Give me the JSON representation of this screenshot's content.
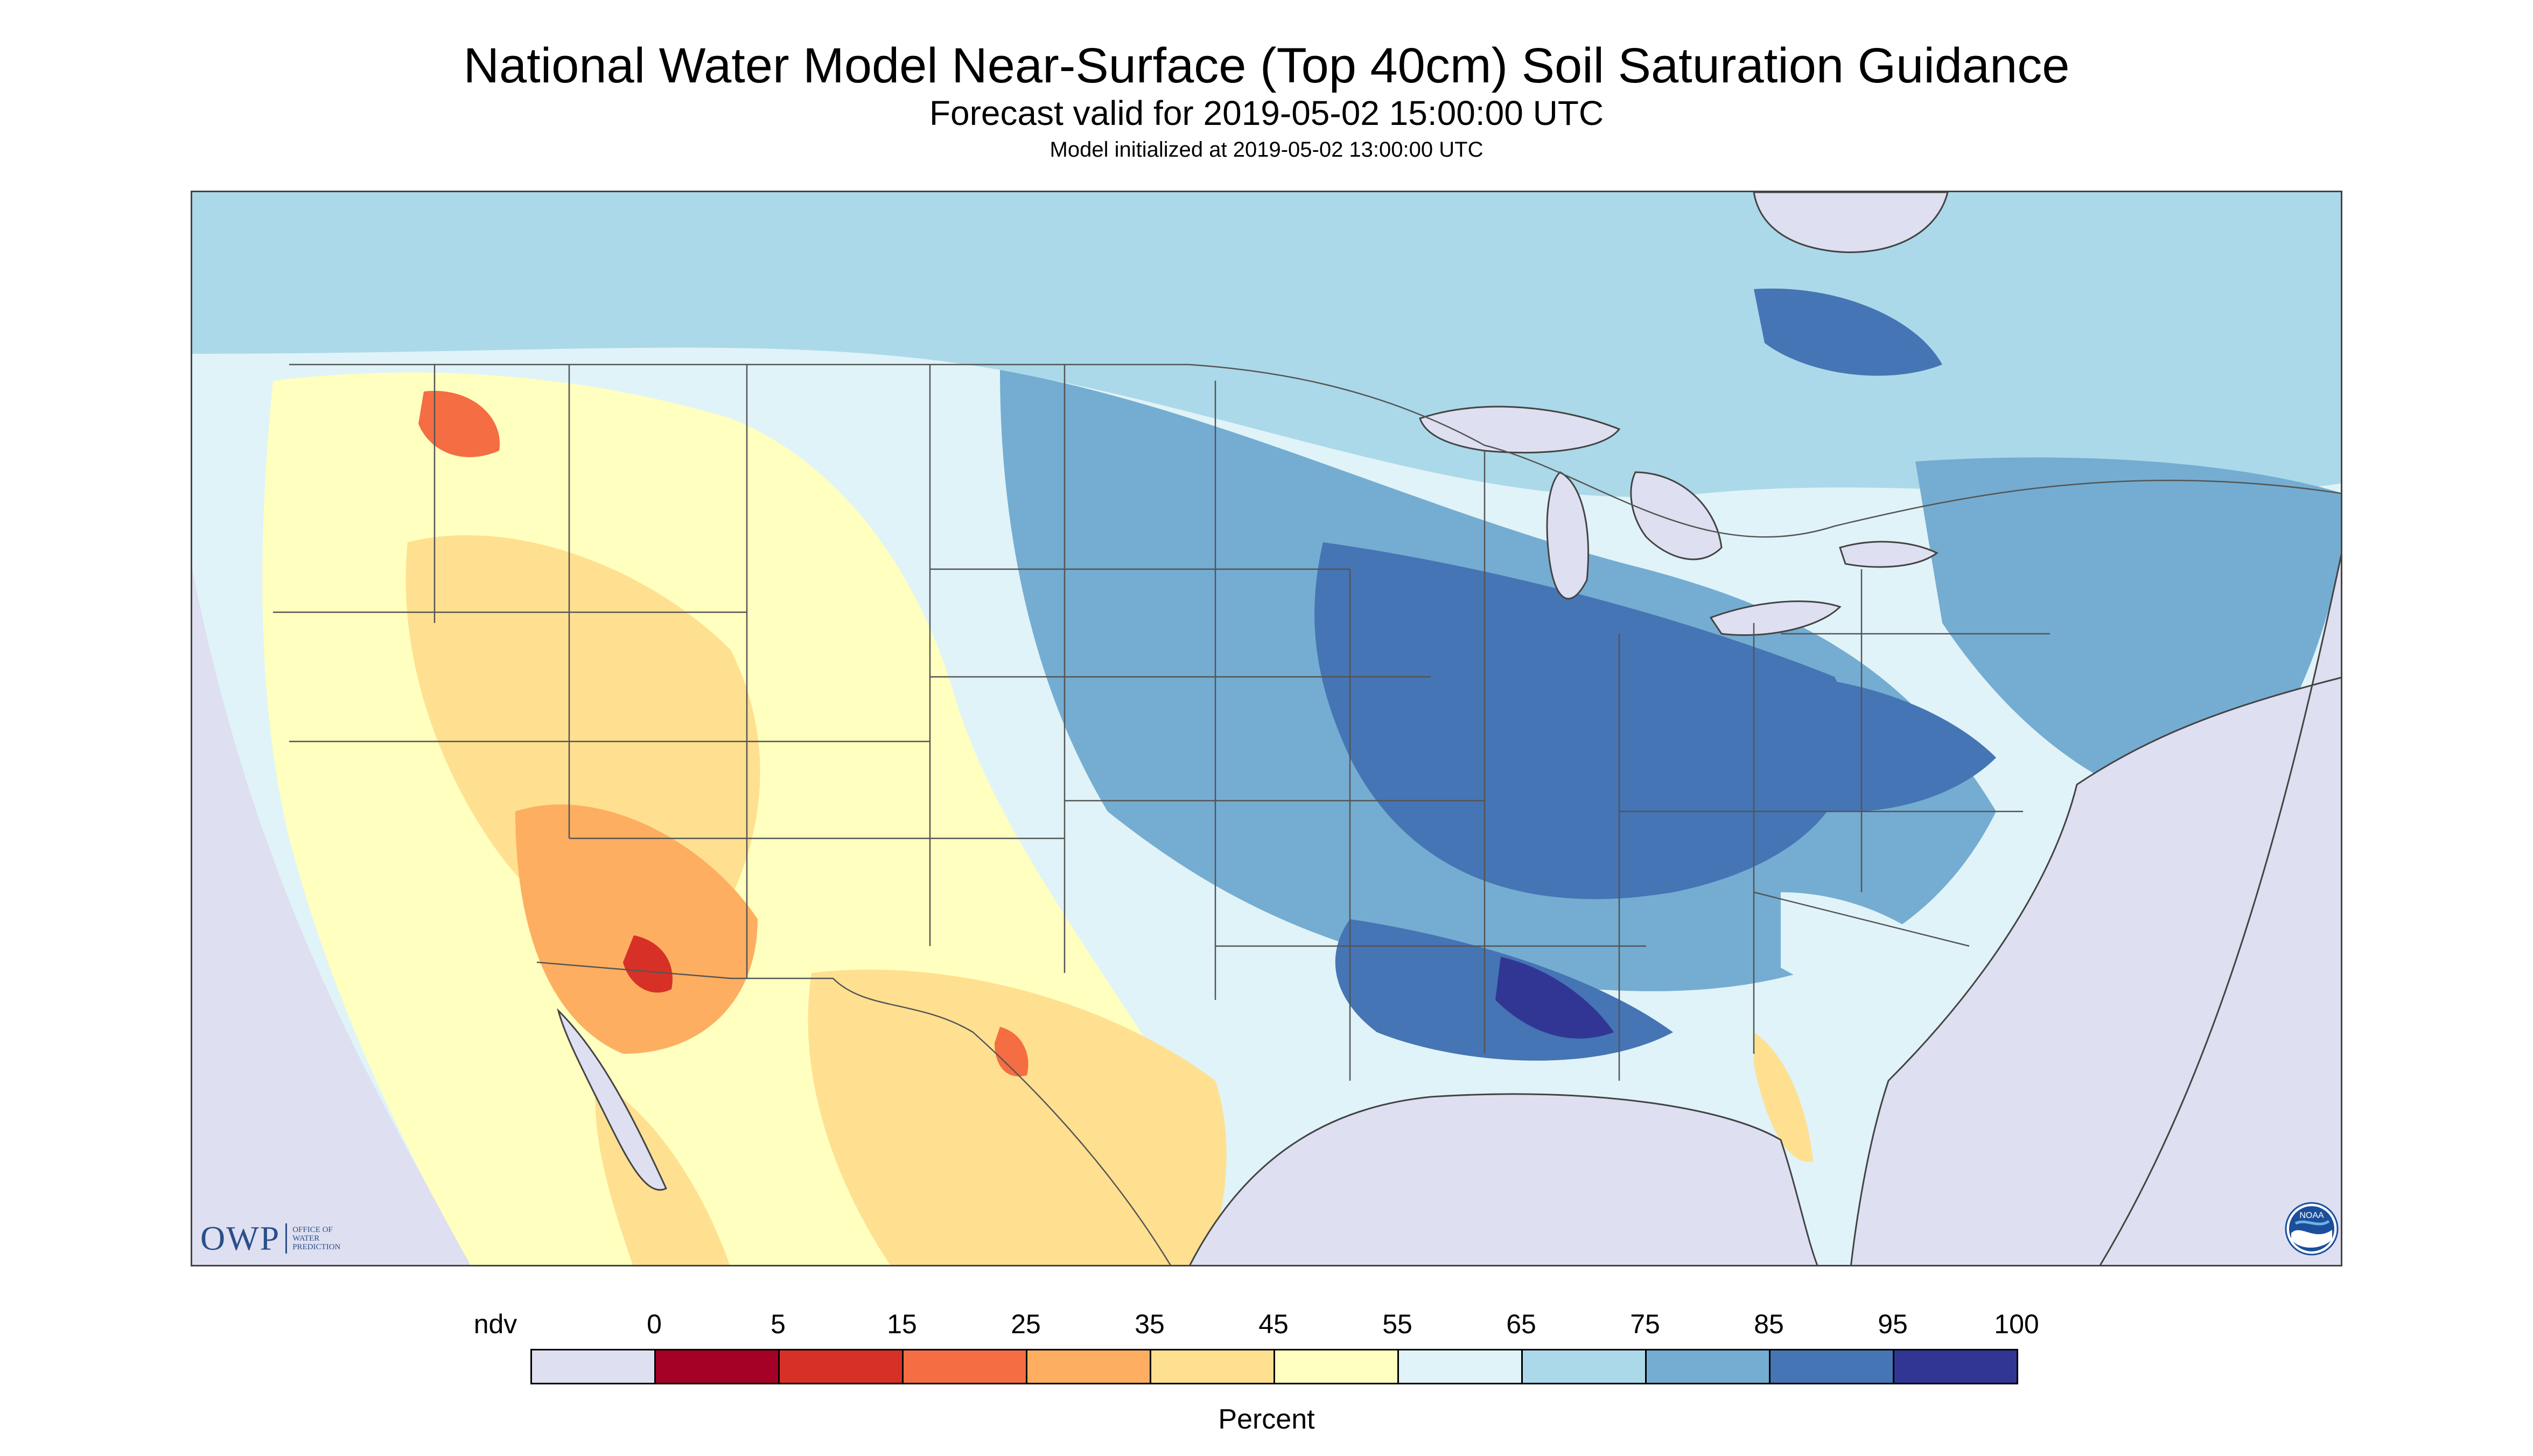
{
  "title": "National Water Model Near-Surface (Top 40cm) Soil Saturation Guidance",
  "subtitle": "Forecast valid for 2019-05-02 15:00:00 UTC",
  "subsubtitle": "Model initialized at 2019-05-02 13:00:00 UTC",
  "logos": {
    "owp_mark": "OWP",
    "owp_text_lines": [
      "OFFICE OF",
      "WATER",
      "PREDICTION"
    ],
    "noaa_text": "NOAA"
  },
  "legend": {
    "title": "Percent",
    "labels": [
      "ndv",
      "0",
      "5",
      "15",
      "25",
      "35",
      "45",
      "55",
      "65",
      "75",
      "85",
      "95",
      "100"
    ],
    "bins": [
      {
        "range": "ndv",
        "color": "#dedff0"
      },
      {
        "range": "0-5",
        "color": "#a50026"
      },
      {
        "range": "5-15",
        "color": "#d73027"
      },
      {
        "range": "15-25",
        "color": "#f46d43"
      },
      {
        "range": "25-35",
        "color": "#fdae61"
      },
      {
        "range": "35-45",
        "color": "#fee090"
      },
      {
        "range": "45-55",
        "color": "#ffffbf"
      },
      {
        "range": "55-65",
        "color": "#e0f3f8"
      },
      {
        "range": "65-75",
        "color": "#abd9e9"
      },
      {
        "range": "75-85",
        "color": "#74add1"
      },
      {
        "range": "85-95",
        "color": "#4575b4"
      },
      {
        "range": "95-100",
        "color": "#313695"
      }
    ]
  },
  "colors": {
    "no_data": "#dedff0",
    "water": "#dedff0",
    "boundary": "#444444"
  }
}
